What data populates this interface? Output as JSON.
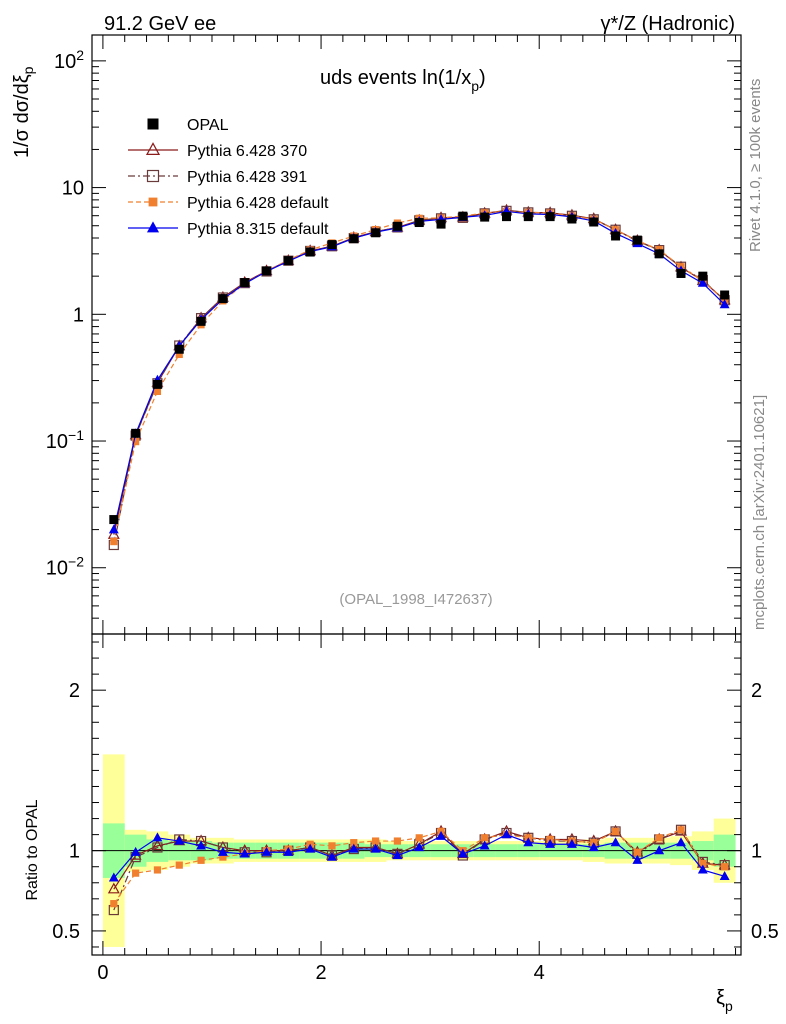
{
  "header": {
    "left": "91.2 GeV ee",
    "right": "γ*/Z (Hadronic)"
  },
  "side_texts": {
    "rivet": "Rivet 4.1.0, ≥ 100k events",
    "mcplots": "mcplots.cern.ch [arXiv:2401.10621]"
  },
  "chart_data": {
    "type": "line",
    "title": "uds events ln(1/x_p)",
    "xlabel": "ξ_p",
    "ylabel": "1/σ dσ/dξ_p",
    "ratio_ylabel": "Ratio to OPAL",
    "analysis_id": "(OPAL_1998_I472637)",
    "yscale": "log",
    "ylim": [
      0.003,
      160
    ],
    "ratio_ylim": [
      0.35,
      2.35
    ],
    "xlim": [
      -0.1,
      5.85
    ],
    "x_ticks": [
      "0",
      "2",
      "4"
    ],
    "y_ticks": [
      "10^-2",
      "10^-1",
      "1",
      "10",
      "10^2"
    ],
    "ratio_ticks": [
      "0.5",
      "1",
      "2"
    ],
    "x": [
      0.1,
      0.3,
      0.5,
      0.7,
      0.9,
      1.1,
      1.3,
      1.5,
      1.7,
      1.9,
      2.1,
      2.3,
      2.5,
      2.7,
      2.9,
      3.1,
      3.3,
      3.5,
      3.7,
      3.9,
      4.1,
      4.3,
      4.5,
      4.7,
      4.9,
      5.1,
      5.3,
      5.5,
      5.7
    ],
    "data": {
      "name": "OPAL",
      "values": [
        0.024,
        0.115,
        0.28,
        0.53,
        0.88,
        1.33,
        1.78,
        2.2,
        2.65,
        3.1,
        3.55,
        3.95,
        4.4,
        4.95,
        5.3,
        5.15,
        5.95,
        5.85,
        5.9,
        5.9,
        5.9,
        5.65,
        5.35,
        4.15,
        3.85,
        3.0,
        2.1,
        2.0,
        1.42
      ],
      "band_inner": [
        0.17,
        0.1,
        0.07,
        0.06,
        0.06,
        0.05,
        0.05,
        0.05,
        0.05,
        0.05,
        0.05,
        0.05,
        0.04,
        0.04,
        0.04,
        0.04,
        0.04,
        0.04,
        0.04,
        0.04,
        0.04,
        0.04,
        0.04,
        0.05,
        0.05,
        0.05,
        0.05,
        0.06,
        0.1
      ],
      "band_outer": [
        0.6,
        0.13,
        0.12,
        0.1,
        0.08,
        0.08,
        0.07,
        0.07,
        0.07,
        0.07,
        0.07,
        0.07,
        0.07,
        0.06,
        0.06,
        0.06,
        0.06,
        0.06,
        0.06,
        0.06,
        0.06,
        0.06,
        0.07,
        0.08,
        0.08,
        0.08,
        0.09,
        0.12,
        0.2
      ]
    },
    "series": [
      {
        "name": "Pythia 6.428 370",
        "color": "#8b1a1a",
        "dash": "",
        "marker": "triangle-open",
        "ratio": [
          0.76,
          0.97,
          1.03,
          1.06,
          1.06,
          1.02,
          1.0,
          1.0,
          1.0,
          1.02,
          0.97,
          1.02,
          1.02,
          0.98,
          1.04,
          1.12,
          0.98,
          1.07,
          1.12,
          1.08,
          1.07,
          1.07,
          1.06,
          1.12,
          0.99,
          1.07,
          1.12,
          0.92,
          0.91
        ]
      },
      {
        "name": "Pythia 6.428 391",
        "color": "#6a3a3a",
        "dash": "7,3,2,3",
        "marker": "square-open",
        "ratio": [
          0.63,
          0.96,
          1.02,
          1.07,
          1.06,
          1.02,
          0.99,
          0.99,
          1.0,
          1.02,
          0.97,
          1.01,
          1.02,
          0.98,
          1.04,
          1.11,
          0.97,
          1.07,
          1.11,
          1.08,
          1.06,
          1.06,
          1.05,
          1.12,
          0.98,
          1.07,
          1.13,
          0.93,
          0.91
        ]
      },
      {
        "name": "Pythia 6.428 default",
        "color": "#f08030",
        "dash": "5,3",
        "marker": "square-filled",
        "ratio": [
          0.67,
          0.86,
          0.88,
          0.91,
          0.94,
          0.96,
          0.98,
          1.0,
          1.01,
          1.04,
          1.03,
          1.05,
          1.06,
          1.06,
          1.08,
          1.12,
          1.0,
          1.08,
          1.1,
          1.08,
          1.07,
          1.06,
          1.05,
          1.12,
          0.99,
          1.08,
          1.13,
          0.92,
          0.9
        ]
      },
      {
        "name": "Pythia 8.315 default",
        "color": "#0000ee",
        "dash": "",
        "marker": "triangle-filled",
        "ratio": [
          0.83,
          0.99,
          1.08,
          1.06,
          1.03,
          0.99,
          0.98,
          0.99,
          0.99,
          1.01,
          0.96,
          1.01,
          1.01,
          0.97,
          1.02,
          1.09,
          0.98,
          1.03,
          1.1,
          1.05,
          1.04,
          1.04,
          1.02,
          1.05,
          0.94,
          1.0,
          1.05,
          0.88,
          0.84
        ]
      }
    ]
  }
}
